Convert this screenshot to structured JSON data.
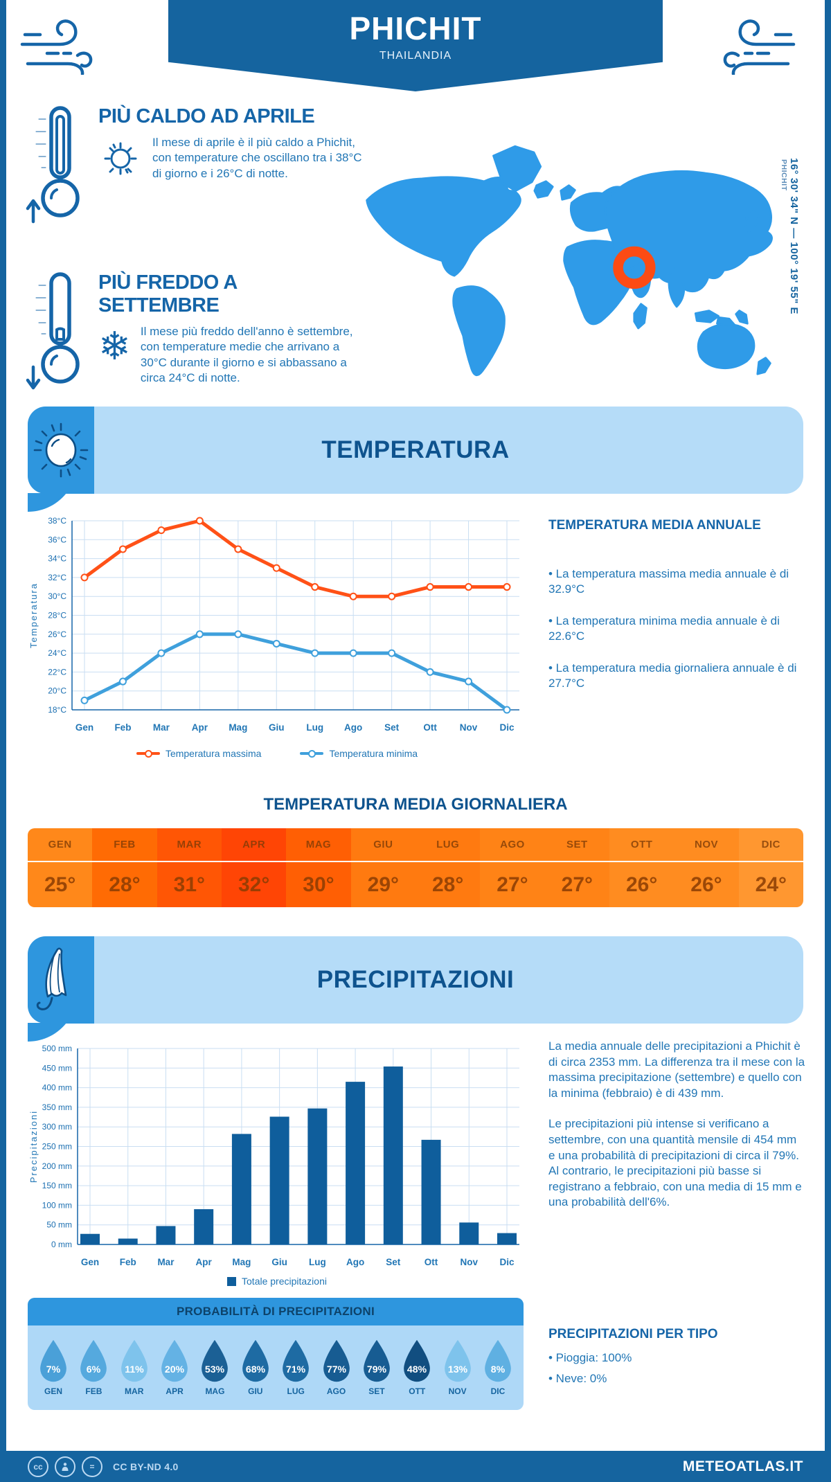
{
  "header": {
    "title": "PHICHIT",
    "subtitle": "THAILANDIA"
  },
  "highlights": [
    {
      "heading": "PIÙ CALDO AD APRILE",
      "text": "Il mese di aprile è il più caldo a Phichit, con temperature che oscillano tra i 38°C di giorno e i 26°C di notte."
    },
    {
      "heading": "PIÙ FREDDO A SETTEMBRE",
      "text": "Il mese più freddo dell'anno è settembre, con temperature medie che arrivano a 30°C durante il giorno e si abbassano a circa 24°C di notte."
    }
  ],
  "map": {
    "location_label": "PHICHIT",
    "coordinates": "16° 30' 34\" N — 100° 19' 55\" E",
    "marker_color": "#fc4b14",
    "land_color": "#2f9be8"
  },
  "temperature_section": {
    "banner_title": "TEMPERATURA",
    "annual": {
      "heading": "TEMPERATURA MEDIA ANNUALE",
      "bullets": [
        "• La temperatura massima media annuale è di 32.9°C",
        "• La temperatura minima media annuale è di 22.6°C",
        "• La temperatura media giornaliera annuale è di 27.7°C"
      ]
    },
    "daily_heading": "TEMPERATURA MEDIA GIORNALIERA",
    "daily_table": {
      "months": [
        "GEN",
        "FEB",
        "MAR",
        "APR",
        "MAG",
        "GIU",
        "LUG",
        "AGO",
        "SET",
        "OTT",
        "NOV",
        "DIC"
      ],
      "values": [
        "25°",
        "28°",
        "31°",
        "32°",
        "30°",
        "29°",
        "28°",
        "27°",
        "27°",
        "26°",
        "26°",
        "24°"
      ],
      "colors": [
        "#ff881a",
        "#ff6b04",
        "#ff5605",
        "#ff4505",
        "#ff5f04",
        "#ff7a10",
        "#ff7a10",
        "#ff8316",
        "#ff8316",
        "#ff8c20",
        "#ff8c20",
        "#ff9730"
      ]
    }
  },
  "precipitation_section": {
    "banner_title": "PRECIPITAZIONI",
    "paragraphs": [
      "La media annuale delle precipitazioni a Phichit è di circa 2353 mm. La differenza tra il mese con la massima precipitazione (settembre) e quello con la minima (febbraio) è di 439 mm.",
      "Le precipitazioni più intense si verificano a settembre, con una quantità mensile di 454 mm e una probabilità di precipitazioni di circa il 79%. Al contrario, le precipitazioni più basse si registrano a febbraio, con una media di 15 mm e una probabilità dell'6%."
    ],
    "probability": {
      "heading": "PROBABILITÀ DI PRECIPITAZIONI",
      "months": [
        "GEN",
        "FEB",
        "MAR",
        "APR",
        "MAG",
        "GIU",
        "LUG",
        "AGO",
        "SET",
        "OTT",
        "NOV",
        "DIC"
      ],
      "values": [
        "7%",
        "6%",
        "11%",
        "20%",
        "53%",
        "68%",
        "71%",
        "77%",
        "79%",
        "48%",
        "13%",
        "8%"
      ],
      "colors": [
        "#4aa0d8",
        "#55a9de",
        "#7ec3ec",
        "#64b2e4",
        "#1b6095",
        "#1e6ba3",
        "#1e6ba3",
        "#175c92",
        "#175c92",
        "#114e80",
        "#7ec3ec",
        "#5fb0e2"
      ]
    },
    "per_type": {
      "heading": "PRECIPITAZIONI PER TIPO",
      "bullets": [
        "• Pioggia: 100%",
        "• Neve: 0%"
      ]
    }
  },
  "footer": {
    "license": "CC BY-ND 4.0",
    "site": "METEOATLAS.IT"
  },
  "chart_data": [
    {
      "type": "line",
      "title": "Temperatura",
      "x": [
        "Gen",
        "Feb",
        "Mar",
        "Apr",
        "Mag",
        "Giu",
        "Lug",
        "Ago",
        "Set",
        "Ott",
        "Nov",
        "Dic"
      ],
      "ylabel": "Temperatura",
      "ylim": [
        18,
        38
      ],
      "ystep": 2,
      "yunit": "°C",
      "grid": true,
      "legend_position": "bottom",
      "series": [
        {
          "name": "Temperatura massima",
          "color": "#ff5117",
          "values": [
            32,
            35,
            37,
            38,
            35,
            33,
            31,
            30,
            30,
            31,
            31,
            31
          ]
        },
        {
          "name": "Temperatura minima",
          "color": "#3fa0dc",
          "values": [
            19,
            21,
            24,
            26,
            26,
            25,
            24,
            24,
            24,
            22,
            21,
            18
          ]
        }
      ]
    },
    {
      "type": "bar",
      "title": "Precipitazioni",
      "x": [
        "Gen",
        "Feb",
        "Mar",
        "Apr",
        "Mag",
        "Giu",
        "Lug",
        "Ago",
        "Set",
        "Ott",
        "Nov",
        "Dic"
      ],
      "ylabel": "Precipitazioni",
      "ylim": [
        0,
        500
      ],
      "ystep": 50,
      "yunit": " mm",
      "grid": true,
      "legend_position": "bottom",
      "series": [
        {
          "name": "Totale precipitazioni",
          "color": "#0f5e9c",
          "values": [
            27,
            15,
            47,
            90,
            282,
            326,
            347,
            415,
            454,
            267,
            56,
            29
          ]
        }
      ]
    }
  ]
}
